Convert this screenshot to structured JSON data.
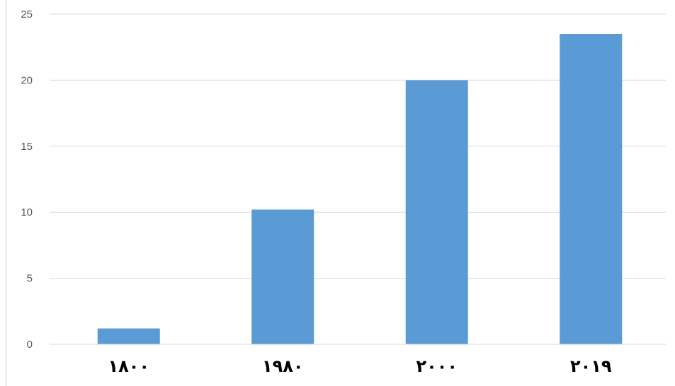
{
  "chart_data": {
    "type": "bar",
    "categories": [
      "١٨٠٠",
      "١٩٨٠",
      "٢٠٠٠",
      "٢٠١٩"
    ],
    "values": [
      1.2,
      10.2,
      20.0,
      23.5
    ],
    "y_ticks": [
      "0",
      "5",
      "10",
      "15",
      "20",
      "25"
    ],
    "ylim": [
      0,
      25
    ],
    "grid": true,
    "legend": "none",
    "bar_color": "#5b9bd5",
    "grid_color": "#d9d9d9"
  }
}
